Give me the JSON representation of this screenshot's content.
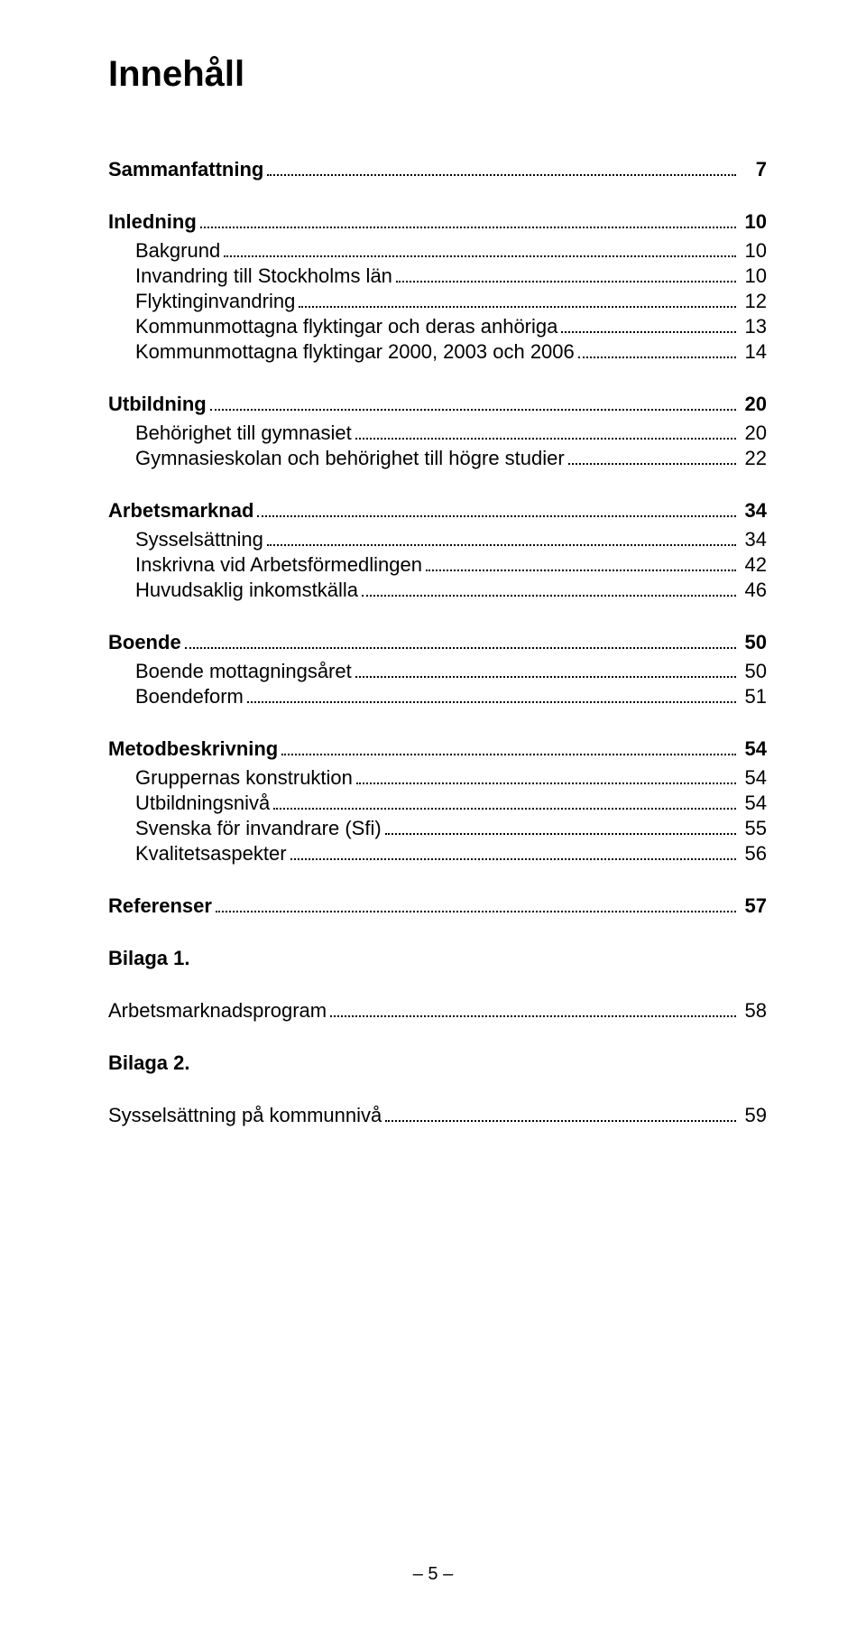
{
  "title": "Innehåll",
  "page_footer": "– 5 –",
  "toc": [
    {
      "level": 1,
      "label": "Sammanfattning",
      "page": "7"
    },
    {
      "level": 1,
      "label": "Inledning",
      "page": "10"
    },
    {
      "level": 2,
      "label": "Bakgrund",
      "page": "10"
    },
    {
      "level": 2,
      "label": "Invandring till Stockholms län",
      "page": "10"
    },
    {
      "level": 2,
      "label": "Flyktinginvandring",
      "page": "12"
    },
    {
      "level": 2,
      "label": "Kommunmottagna flyktingar och deras anhöriga",
      "page": "13"
    },
    {
      "level": 2,
      "label": "Kommunmottagna flyktingar 2000, 2003 och 2006",
      "page": "14"
    },
    {
      "level": 1,
      "label": "Utbildning",
      "page": "20"
    },
    {
      "level": 2,
      "label": "Behörighet till gymnasiet",
      "page": "20"
    },
    {
      "level": 2,
      "label": "Gymnasieskolan och behörighet till högre studier",
      "page": "22"
    },
    {
      "level": 1,
      "label": "Arbetsmarknad",
      "page": "34"
    },
    {
      "level": 2,
      "label": "Sysselsättning",
      "page": "34"
    },
    {
      "level": 2,
      "label": "Inskrivna vid Arbetsförmedlingen",
      "page": "42"
    },
    {
      "level": 2,
      "label": "Huvudsaklig inkomstkälla",
      "page": "46"
    },
    {
      "level": 1,
      "label": "Boende",
      "page": "50"
    },
    {
      "level": 2,
      "label": "Boende mottagningsåret",
      "page": "50"
    },
    {
      "level": 2,
      "label": "Boendeform",
      "page": "51"
    },
    {
      "level": 1,
      "label": "Metodbeskrivning",
      "page": "54"
    },
    {
      "level": 2,
      "label": "Gruppernas konstruktion",
      "page": "54"
    },
    {
      "level": 2,
      "label": "Utbildningsnivå",
      "page": "54"
    },
    {
      "level": 2,
      "label": "Svenska för invandrare (Sfi)",
      "page": "55"
    },
    {
      "level": 2,
      "label": "Kvalitetsaspekter",
      "page": "56"
    },
    {
      "level": 1,
      "label": "Referenser",
      "page": "57"
    },
    {
      "level": 1,
      "label": "Bilaga 1.",
      "page": ""
    },
    {
      "level": 3,
      "label": "Arbetsmarknadsprogram",
      "page": "58"
    },
    {
      "level": 1,
      "label": "Bilaga 2.",
      "page": ""
    },
    {
      "level": 3,
      "label": "Sysselsättning på kommunnivå",
      "page": "59"
    }
  ]
}
